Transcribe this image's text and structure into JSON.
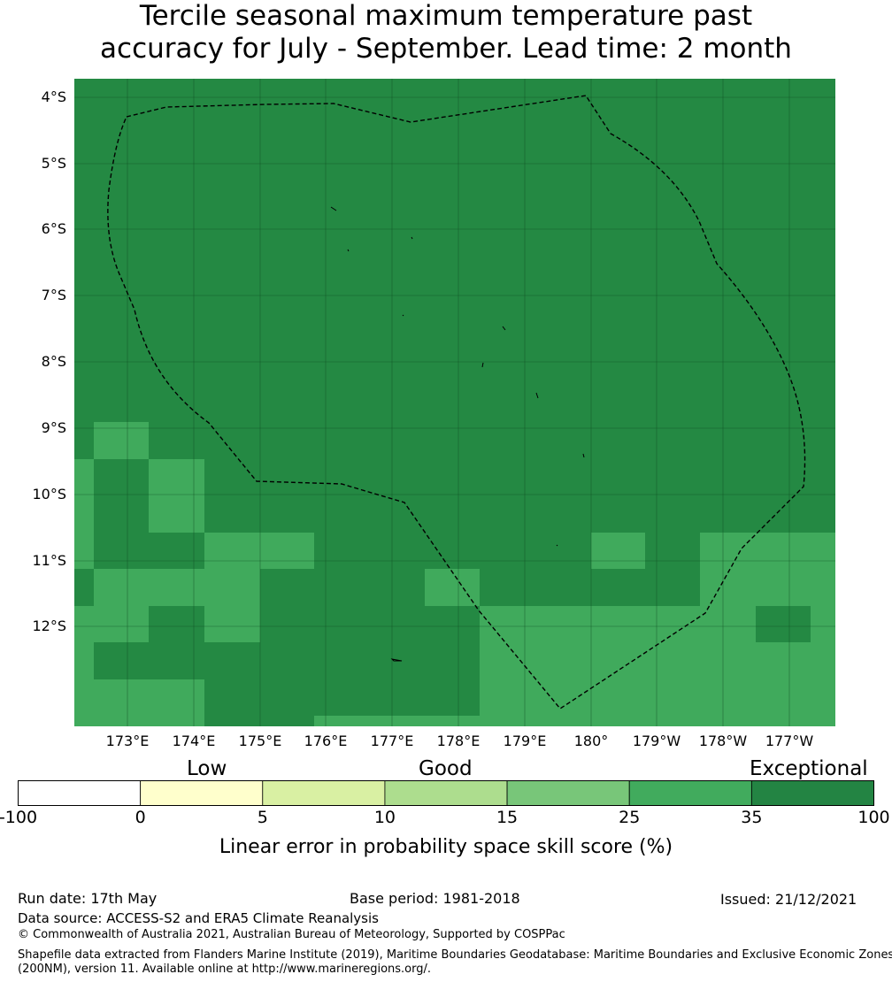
{
  "title": {
    "line1": "Tercile seasonal maximum temperature past",
    "line2": "accuracy for July - September. Lead time: 2 month"
  },
  "map": {
    "lat_labels": [
      "4°S",
      "5°S",
      "6°S",
      "7°S",
      "8°S",
      "9°S",
      "10°S",
      "11°S",
      "12°S"
    ],
    "lon_labels": [
      "173°E",
      "174°E",
      "175°E",
      "176°E",
      "177°E",
      "178°E",
      "179°E",
      "180°",
      "179°W",
      "178°W",
      "177°W"
    ],
    "cell_colors": {
      "exceptional_35_100": "#248943",
      "range_25_35": "#40aa5c"
    },
    "gridline": "grid on",
    "eez_boundary": "dashed black"
  },
  "legend": {
    "categories": [
      "Low",
      "Good",
      "Exceptional"
    ],
    "ticks": [
      "-100",
      "0",
      "5",
      "10",
      "15",
      "25",
      "35",
      "100"
    ],
    "colors": [
      "#ffffff",
      "#ffffcc",
      "#d9f0a3",
      "#addd8e",
      "#78c679",
      "#41ab5d",
      "#238443"
    ],
    "label": "Linear error in probability space skill score (%)"
  },
  "footer": {
    "run_date": "Run date: 17th May",
    "base_period": "Base period: 1981-2018",
    "issued": "Issued: 21/12/2021",
    "data_source": "Data source: ACCESS-S2 and ERA5 Climate Reanalysis",
    "copyright": "© Commonwealth of Australia 2021, Australian Bureau of Meteorology, Supported by COSPPac",
    "shapefile": "Shapefile data extracted from Flanders Marine Institute (2019), Maritime Boundaries Geodatabase: Maritime Boundaries and Exclusive Economic Zones (200NM), version 11. Available online at http://www.marineregions.org/."
  }
}
